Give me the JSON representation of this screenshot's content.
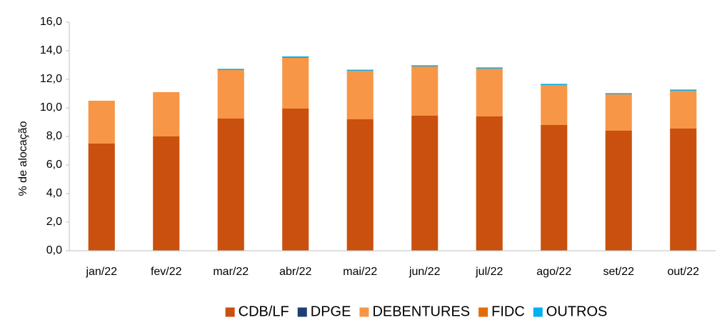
{
  "chart_data": {
    "type": "bar",
    "stacked": true,
    "categories": [
      "jan/22",
      "fev/22",
      "mar/22",
      "abr/22",
      "mai/22",
      "jun/22",
      "jul/22",
      "ago/22",
      "set/22",
      "out/22"
    ],
    "series": [
      {
        "name": "CDB/LF",
        "color": "#C9500E",
        "values": [
          7.5,
          8.0,
          9.25,
          9.95,
          9.2,
          9.45,
          9.4,
          8.8,
          8.4,
          8.55
        ]
      },
      {
        "name": "DPGE",
        "color": "#1F3F73",
        "values": [
          0,
          0,
          0,
          0,
          0,
          0,
          0,
          0,
          0,
          0
        ]
      },
      {
        "name": "DEBENTURES",
        "color": "#F79646",
        "values": [
          3.0,
          3.1,
          3.4,
          3.55,
          3.4,
          3.45,
          3.35,
          2.8,
          2.55,
          2.65
        ]
      },
      {
        "name": "FIDC",
        "color": "#E36C09",
        "values": [
          0,
          0,
          0,
          0,
          0,
          0,
          0,
          0,
          0,
          0
        ]
      },
      {
        "name": "OUTROS",
        "color": "#00B0F0",
        "values": [
          0,
          0,
          0.08,
          0.1,
          0.07,
          0.08,
          0.08,
          0.08,
          0.08,
          0.08
        ]
      }
    ],
    "ylabel": "% de alocação",
    "ylim": [
      0,
      16
    ],
    "yticks": [
      "0,0",
      "2,0",
      "4,0",
      "6,0",
      "8,0",
      "10,0",
      "12,0",
      "14,0",
      "16,0"
    ],
    "ytick_values": [
      0,
      2,
      4,
      6,
      8,
      10,
      12,
      14,
      16
    ],
    "grid": false,
    "legend_position": "bottom"
  }
}
